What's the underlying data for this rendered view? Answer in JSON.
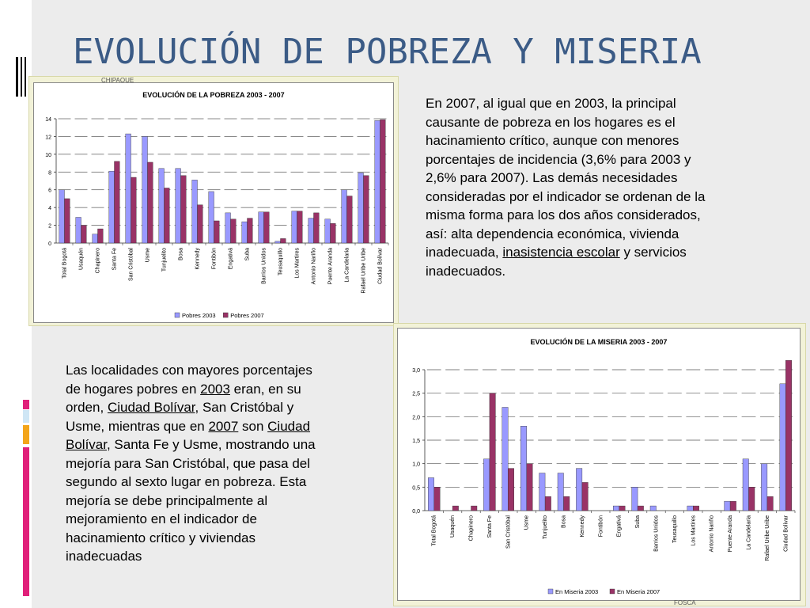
{
  "slide": {
    "title": "EVOLUCIÓN DE POBREZA Y MISERIA",
    "map_labels": {
      "top": "CHIPAQUE",
      "bottom": "FOSCA"
    },
    "text_right": {
      "full": "En 2007, al igual que en 2003, la principal causante de pobreza  en los hogares es el hacinamiento crítico, aunque  con menores porcentajes  de incidencia  (3,6% para 2003  y 2,6% para 2007).  Las demás necesidades consideradas  por el indicador se ordenan  de la misma forma para los dos años considerados, así: alta dependencia económica, vivienda inadecuada, inasistencia escolar y servicios inadecuados.",
      "lines": [
        "En 2007, al igual que en 2003, la principal",
        "causante de pobreza  en los hogares es el",
        "hacinamiento crítico, aunque  con menores",
        "porcentajes  de incidencia  (3,6% para 2003  y",
        "2,6% para 2007).  Las demás necesidades",
        "consideradas  por el indicador se ordenan  de la",
        "misma forma para los dos años considerados,",
        "así: alta dependencia económica, vivienda"
      ],
      "line9_pre": "inadecuada, ",
      "line9_underlined": "inasistencia escolar",
      "line9_post": " y servicios",
      "line10": "inadecuados."
    },
    "text_left": {
      "l1": "Las localidades con mayores porcentajes",
      "l2_pre": "de hogares pobres en ",
      "l2_u": "2003",
      "l2_post": " eran, en su",
      "l3_pre": "orden, ",
      "l3_u": "Ciudad Bolívar",
      "l3_post": ", San Cristóbal y",
      "l4_pre": "Usme, mientras que en ",
      "l4_u1": "2007",
      "l4_mid": " son ",
      "l4_u2": "Ciudad",
      "l5_u": "Bolívar",
      "l5_post": ", Santa Fe y Usme, mostrando una",
      "rest": [
        "mejoría para San Cristóbal, que pasa del",
        "segundo al sexto lugar en pobreza. Esta",
        "mejoría se debe principalmente al",
        "mejoramiento en el indicador de",
        "hacinamiento  crítico y viviendas",
        "inadecuadas"
      ]
    }
  },
  "colors": {
    "series_a": "#9999ff",
    "series_b": "#993366",
    "title": "#3b5b86"
  },
  "chart_data": [
    {
      "type": "bar",
      "title": "EVOLUCIÓN DE LA POBREZA 2003 - 2007",
      "categories": [
        "Total Bogotá",
        "Usaquén",
        "Chapinero",
        "Santa Fe",
        "San Cristóbal",
        "Usme",
        "Tunjuelito",
        "Bosa",
        "Kennedy",
        "Fontibón",
        "Engativá",
        "Suba",
        "Barrios Unidos",
        "Teusaquillo",
        "Los Martires",
        "Antonio Nariño",
        "Puente Aranda",
        "La Candelaria",
        "Rafael Uribe Uribe",
        "Ciudad Bolívar"
      ],
      "series": [
        {
          "name": "Pobres 2003",
          "values": [
            6.0,
            2.9,
            1.0,
            8.1,
            12.3,
            12.0,
            8.4,
            8.4,
            7.1,
            5.8,
            3.4,
            2.4,
            3.5,
            0.2,
            3.6,
            2.8,
            2.7,
            6.0,
            7.9,
            13.8
          ]
        },
        {
          "name": "Pobres 2007",
          "values": [
            5.0,
            2.0,
            1.6,
            9.2,
            7.4,
            9.1,
            6.2,
            7.6,
            4.3,
            2.5,
            2.7,
            2.8,
            3.5,
            0.5,
            3.6,
            3.4,
            2.2,
            5.3,
            7.6,
            13.9
          ]
        }
      ],
      "ylim": [
        0,
        14
      ],
      "yticks": [
        "0",
        "2",
        "4",
        "6",
        "8",
        "10",
        "12",
        "14"
      ],
      "legend_position": "bottom",
      "grid": true
    },
    {
      "type": "bar",
      "title": "EVOLUCIÓN DE LA MISERIA 2003 - 2007",
      "categories": [
        "Total Bogotá",
        "Usaquén",
        "Chapinero",
        "Santa Fe",
        "San Cristóbal",
        "Usme",
        "Tunjuelito",
        "Bosa",
        "Kennedy",
        "Fontibón",
        "Engativá",
        "Suba",
        "Barrios Unidos",
        "Teusaquillo",
        "Los Martires",
        "Antonio Nariño",
        "Puente Aranda",
        "La Candelaria",
        "Rafael Uribe Uribe",
        "Ciudad Bolívar"
      ],
      "series": [
        {
          "name": "En Miseria 2003",
          "values": [
            0.7,
            0.0,
            0.0,
            1.1,
            2.2,
            1.8,
            0.8,
            0.8,
            0.9,
            0.0,
            0.1,
            0.5,
            0.1,
            0.0,
            0.1,
            0.0,
            0.2,
            1.1,
            1.0,
            2.7
          ]
        },
        {
          "name": "En Miseria 2007",
          "values": [
            0.5,
            0.1,
            0.1,
            2.5,
            0.9,
            1.0,
            0.3,
            0.3,
            0.6,
            0.0,
            0.1,
            0.1,
            0.0,
            0.0,
            0.1,
            0.0,
            0.2,
            0.5,
            0.3,
            3.2
          ]
        }
      ],
      "ylim": [
        0,
        3.0
      ],
      "yticks": [
        "0,0",
        "0,5",
        "1,0",
        "1,5",
        "2,0",
        "2,5",
        "3,0"
      ],
      "legend_position": "bottom",
      "grid": true
    }
  ]
}
